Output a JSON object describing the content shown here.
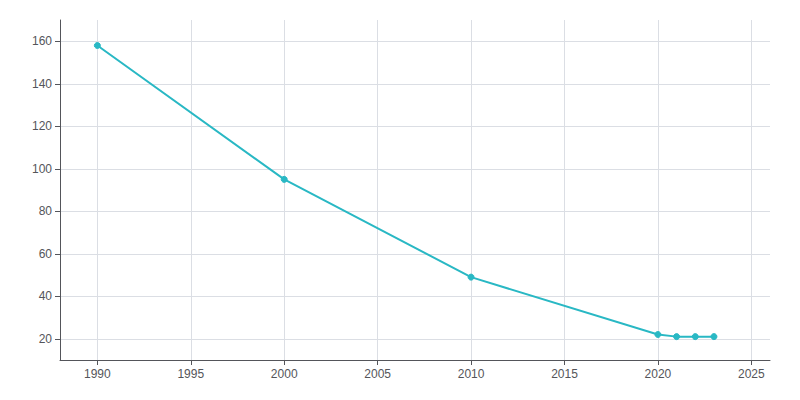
{
  "chart_data": {
    "type": "line",
    "x": [
      1990,
      2000,
      2010,
      2020,
      2021,
      2022,
      2023
    ],
    "values": [
      158,
      95,
      49,
      22,
      21,
      21,
      21
    ],
    "color": "#29b8c4",
    "marker": "circle",
    "xlim": [
      1988,
      2026
    ],
    "ylim": [
      10,
      170
    ],
    "xticks": [
      1990,
      1995,
      2000,
      2005,
      2010,
      2015,
      2020,
      2025
    ],
    "yticks": [
      20,
      40,
      60,
      80,
      100,
      120,
      140,
      160
    ],
    "grid": true
  }
}
